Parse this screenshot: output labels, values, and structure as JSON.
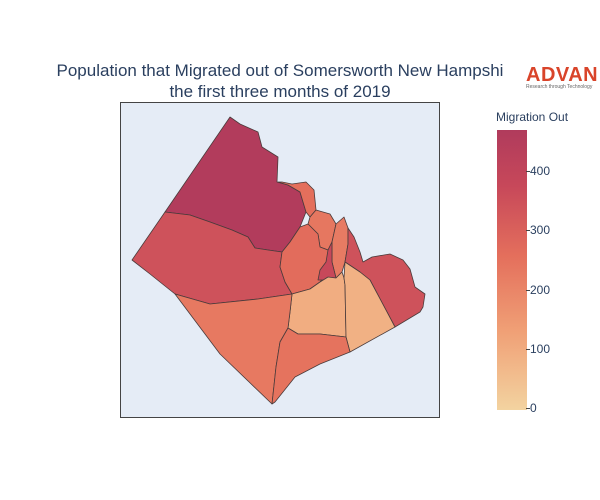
{
  "title": {
    "line1": "Population that Migrated out of Somersworth New Hampshi",
    "line2": "the first three months of 2019"
  },
  "logo": {
    "brand": "ADVAN",
    "tagline": "Research through Technology",
    "color": "#d9442a"
  },
  "colorbar": {
    "title": "Migration Out",
    "ticks": [
      "400",
      "300",
      "200",
      "100",
      "0"
    ],
    "range": [
      0,
      480
    ],
    "colors": [
      "#f3d3a0",
      "#f0a076",
      "#e46f5c",
      "#c7485a",
      "#b03b5c"
    ]
  },
  "map": {
    "background": "#e5ecf6",
    "regions": [
      {
        "id": "northwest",
        "value": 470
      },
      {
        "id": "west",
        "value": 330
      },
      {
        "id": "northeast-small",
        "value": 240
      },
      {
        "id": "upper-central-a",
        "value": 220
      },
      {
        "id": "upper-central-b",
        "value": 210
      },
      {
        "id": "central-mid",
        "value": 250
      },
      {
        "id": "central-small",
        "value": 360
      },
      {
        "id": "east",
        "value": 330
      },
      {
        "id": "south-center",
        "value": 90
      },
      {
        "id": "southeast-small",
        "value": 80
      },
      {
        "id": "southwest",
        "value": 215
      },
      {
        "id": "south",
        "value": 230
      }
    ]
  }
}
